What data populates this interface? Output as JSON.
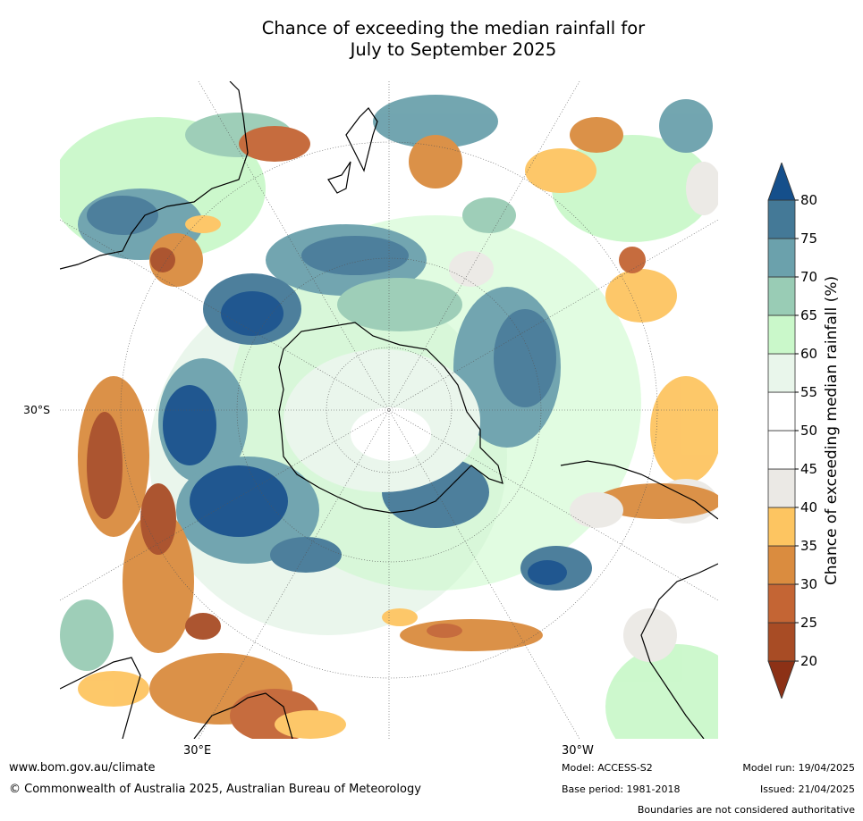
{
  "title_line1": "Chance of exceeding the median rainfall for",
  "title_line2": "July to September 2025",
  "map": {
    "projection": "south-polar-stereographic",
    "lat_label": "30°S",
    "lon_labels": [
      "30°E",
      "30°W"
    ]
  },
  "colorbar": {
    "label": "Chance of exceeding median rainfall (%)",
    "ticks": [
      "80",
      "75",
      "70",
      "65",
      "60",
      "55",
      "50",
      "45",
      "40",
      "35",
      "30",
      "25",
      "20"
    ],
    "colors": [
      "#8c3116",
      "#a84c25",
      "#c46534",
      "#da8c3f",
      "#fdc561",
      "#ebe9e5",
      "#ffffff",
      "#ffffff",
      "#e9f6eb",
      "#caf8ca",
      "#99ccb5",
      "#6ba1ac",
      "#447997",
      "#154f8b"
    ]
  },
  "footer": {
    "url": "www.bom.gov.au/climate",
    "copyright": "© Commonwealth of Australia 2025, Australian Bureau of Meteorology",
    "model": "Model: ACCESS-S2",
    "base_period": "Base period: 1981-2018",
    "model_run": "Model run: 19/04/2025",
    "issued": "Issued: 21/04/2025",
    "disclaimer": "Boundaries are not considered authoritative"
  }
}
